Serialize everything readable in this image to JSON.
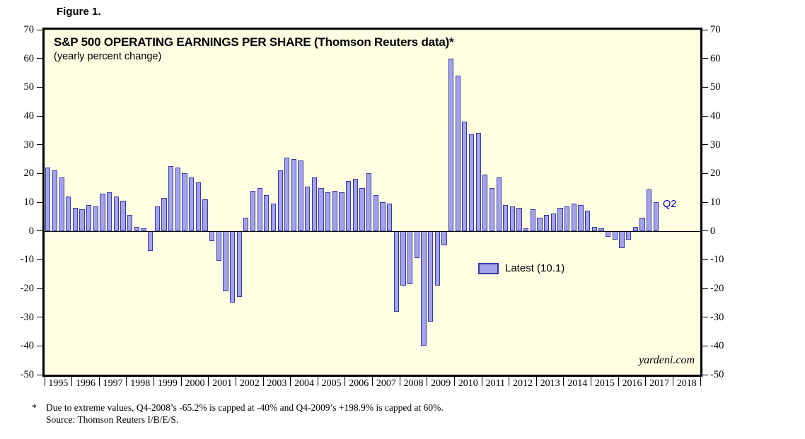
{
  "figure_label": "Figure 1.",
  "chart": {
    "legend_label": "Latest (10.1)",
    "last_point_label": "Q2",
    "watermark": "yardeni.com",
    "colors": {
      "bar_fill": "#a3a3ea",
      "bar_stroke": "#3939ac",
      "plot_background": "#fefee2",
      "annotation_blue": "#0000cd",
      "frame": "#000000"
    }
  },
  "chart_data": {
    "type": "bar",
    "title": "S&P 500 OPERATING EARNINGS PER SHARE (Thomson Reuters data)*",
    "subtitle": "(yearly percent change)",
    "ylabel": "yearly percent change (%)",
    "ylim": [
      -50,
      70
    ],
    "y_ticks": [
      70,
      60,
      50,
      40,
      30,
      20,
      10,
      0,
      -10,
      -20,
      -30,
      -40,
      -50
    ],
    "x_year_labels": [
      "1995",
      "1996",
      "1997",
      "1998",
      "1999",
      "2000",
      "2001",
      "2002",
      "2003",
      "2004",
      "2005",
      "2006",
      "2007",
      "2008",
      "2009",
      "2010",
      "2011",
      "2012",
      "2013",
      "2014",
      "2015",
      "2016",
      "2017",
      "2018"
    ],
    "frequency": "quarterly",
    "first_quarter": "1995-Q1",
    "last_quarter": "2017-Q2",
    "latest_value": 10.1,
    "grid": false,
    "legend_position": "center-right",
    "values": [
      22,
      21,
      18.5,
      12,
      8,
      7.5,
      9,
      8.5,
      13,
      13.5,
      12,
      10.5,
      5.5,
      1.5,
      1,
      -7,
      8.5,
      11.5,
      22.5,
      22,
      20,
      18.5,
      17,
      11,
      -3.5,
      -10.5,
      -21,
      -25,
      -23,
      4.5,
      14,
      15,
      12.5,
      9.5,
      21,
      25.5,
      25,
      24.5,
      15.5,
      18.5,
      15,
      13.5,
      14,
      13.5,
      17.5,
      18,
      15,
      20,
      12.5,
      10,
      9.5,
      -28,
      -19,
      -18.5,
      -9.5,
      -40,
      -31.5,
      -19,
      -5,
      60,
      54,
      38,
      33.5,
      34,
      19.5,
      15,
      18.5,
      9,
      8.5,
      8,
      0.8,
      7.5,
      4.5,
      5.5,
      6,
      8,
      8.5,
      9.5,
      9,
      7,
      1.5,
      1,
      -2,
      -3,
      -6,
      -3,
      1.5,
      4.5,
      14.5,
      10.1
    ],
    "capped_notes": [
      {
        "quarter": "2008-Q4",
        "actual_value": -65.2,
        "capped_at": -40
      },
      {
        "quarter": "2009-Q4",
        "actual_value": 198.9,
        "capped_at": 60
      }
    ]
  },
  "footnote": {
    "marker": "*",
    "line1": "Due to extreme values, Q4-2008’s -65.2% is capped at -40% and Q4-2009’s +198.9% is capped at 60%.",
    "line2": "Source: Thomson Reuters I/B/E/S."
  }
}
